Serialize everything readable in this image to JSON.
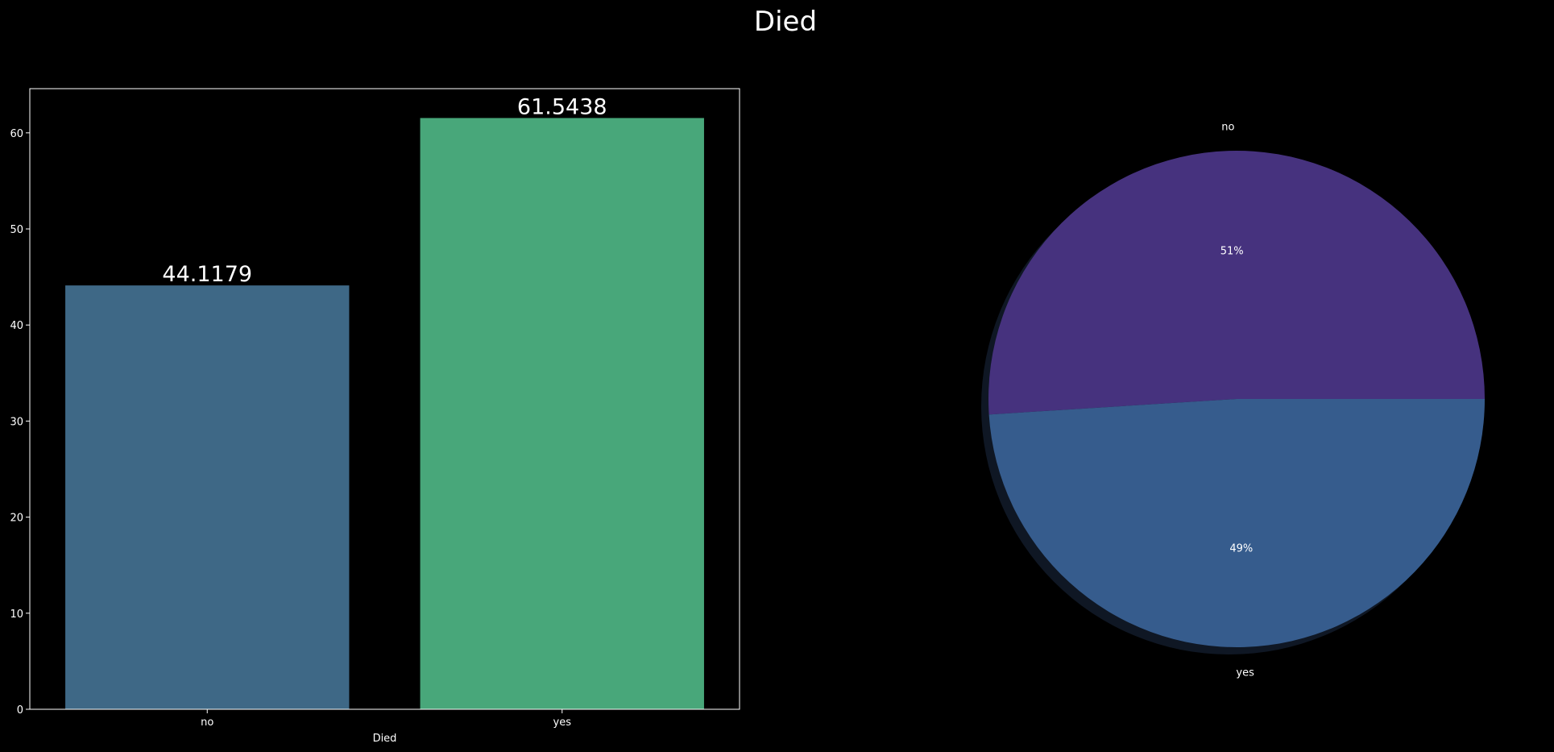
{
  "figure": {
    "suptitle": "Died",
    "background": "#000000",
    "foreground": "#ffffff"
  },
  "chart_data": [
    {
      "type": "bar",
      "categories": [
        "no",
        "yes"
      ],
      "values": [
        44.1179,
        61.5438
      ],
      "value_labels": [
        "44.1179",
        "61.5438"
      ],
      "colors": [
        "#3e6886",
        "#48a77a"
      ],
      "xlabel": "Died",
      "ylabel": "",
      "ylim": [
        0,
        64.6
      ],
      "yticks": [
        0,
        10,
        20,
        30,
        40,
        50,
        60
      ],
      "grid": false
    },
    {
      "type": "pie",
      "labels": [
        "no",
        "yes"
      ],
      "values": [
        51,
        49
      ],
      "autopct_labels": [
        "51%",
        "49%"
      ],
      "colors": [
        "#46327e",
        "#365c8d"
      ],
      "shadow": true,
      "grid": false
    }
  ]
}
